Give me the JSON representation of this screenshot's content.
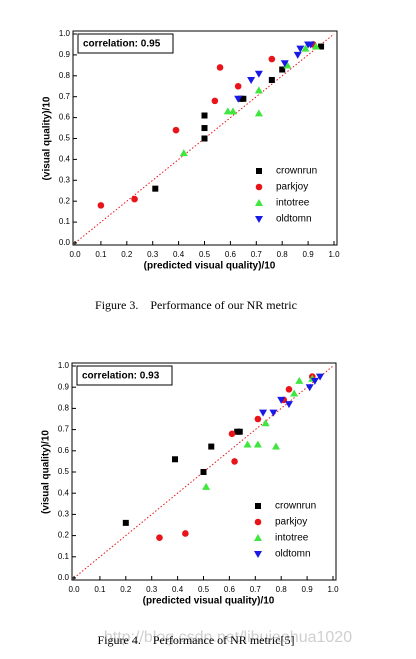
{
  "chart_data": [
    {
      "type": "scatter",
      "annotation": "correlation: 0.95",
      "xlabel": "(predicted visual quality)/10",
      "ylabel": "(visual quality)/10",
      "caption": "Figure 3.    Performance of our NR metric",
      "xlim": [
        0,
        1.0
      ],
      "ylim": [
        0,
        1.0
      ],
      "xticks": [
        {
          "value": 0,
          "label": "0.0"
        },
        {
          "value": 0.1,
          "label": "0.1"
        },
        {
          "value": 0.2,
          "label": "0.2"
        },
        {
          "value": 0.3,
          "label": "0.3"
        },
        {
          "value": 0.4,
          "label": "0.4"
        },
        {
          "value": 0.5,
          "label": "0.5"
        },
        {
          "value": 0.6,
          "label": "0.6"
        },
        {
          "value": 0.7,
          "label": "0.7"
        },
        {
          "value": 0.8,
          "label": "0.8"
        },
        {
          "value": 0.9,
          "label": "0.9"
        },
        {
          "value": 1.0,
          "label": "1.0"
        }
      ],
      "yticks": [
        {
          "value": 0,
          "label": "0.0"
        },
        {
          "value": 0.1,
          "label": "0.1"
        },
        {
          "value": 0.2,
          "label": "0.2"
        },
        {
          "value": 0.3,
          "label": "0.3"
        },
        {
          "value": 0.4,
          "label": "0.4"
        },
        {
          "value": 0.5,
          "label": "0.5"
        },
        {
          "value": 0.6,
          "label": "0.6"
        },
        {
          "value": 0.7,
          "label": "0.7"
        },
        {
          "value": 0.8,
          "label": "0.8"
        },
        {
          "value": 0.9,
          "label": "0.9"
        },
        {
          "value": 1.0,
          "label": "1.0"
        }
      ],
      "legend": "lower right",
      "series": [
        {
          "name": "crownrun",
          "color": "#000000",
          "marker": "square",
          "x": [
            0.31,
            0.5,
            0.5,
            0.5,
            0.64,
            0.65,
            0.76,
            0.8,
            0.95
          ],
          "values": [
            0.26,
            0.55,
            0.61,
            0.5,
            0.69,
            0.69,
            0.78,
            0.83,
            0.94
          ]
        },
        {
          "name": "parkjoy",
          "color": "#e8141a",
          "marker": "circle",
          "x": [
            0.1,
            0.23,
            0.39,
            0.54,
            0.56,
            0.63,
            0.76,
            0.92
          ],
          "values": [
            0.18,
            0.21,
            0.54,
            0.68,
            0.84,
            0.75,
            0.88,
            0.95
          ]
        },
        {
          "name": "intotree",
          "color": "#3ee63e",
          "marker": "triangle",
          "x": [
            0.42,
            0.59,
            0.61,
            0.71,
            0.71,
            0.82,
            0.89,
            0.93
          ],
          "values": [
            0.43,
            0.63,
            0.63,
            0.62,
            0.73,
            0.85,
            0.93,
            0.94
          ]
        },
        {
          "name": "oldtomn",
          "color": "#1a1ae6",
          "marker": "triangle-down",
          "x": [
            0.63,
            0.68,
            0.71,
            0.81,
            0.86,
            0.87,
            0.9,
            0.91
          ],
          "values": [
            0.69,
            0.78,
            0.81,
            0.86,
            0.9,
            0.93,
            0.95,
            0.95
          ]
        }
      ]
    },
    {
      "type": "scatter",
      "annotation": "correlation: 0.93",
      "xlabel": "(predicted visual quality)/10",
      "ylabel": "(visual quality)/10",
      "caption": "Figure 4.    Performance of NR metric[5]",
      "xlim": [
        0,
        1.0
      ],
      "ylim": [
        0,
        1.0
      ],
      "xticks": [
        {
          "value": 0,
          "label": "0.0"
        },
        {
          "value": 0.1,
          "label": "0.1"
        },
        {
          "value": 0.2,
          "label": "0.2"
        },
        {
          "value": 0.3,
          "label": "0.3"
        },
        {
          "value": 0.4,
          "label": "0.4"
        },
        {
          "value": 0.5,
          "label": "0.5"
        },
        {
          "value": 0.6,
          "label": "0.6"
        },
        {
          "value": 0.7,
          "label": "0.7"
        },
        {
          "value": 0.8,
          "label": "0.8"
        },
        {
          "value": 0.9,
          "label": "0.9"
        },
        {
          "value": 1.0,
          "label": "1.0"
        }
      ],
      "yticks": [
        {
          "value": 0,
          "label": "0.0"
        },
        {
          "value": 0.1,
          "label": "0.1"
        },
        {
          "value": 0.2,
          "label": "0.2"
        },
        {
          "value": 0.3,
          "label": "0.3"
        },
        {
          "value": 0.4,
          "label": "0.4"
        },
        {
          "value": 0.5,
          "label": "0.5"
        },
        {
          "value": 0.6,
          "label": "0.6"
        },
        {
          "value": 0.7,
          "label": "0.7"
        },
        {
          "value": 0.8,
          "label": "0.8"
        },
        {
          "value": 0.9,
          "label": "0.9"
        },
        {
          "value": 1.0,
          "label": "1.0"
        }
      ],
      "legend": "lower right",
      "series": [
        {
          "name": "crownrun",
          "color": "#000000",
          "marker": "square",
          "x": [
            0.2,
            0.39,
            0.53,
            0.5,
            0.63,
            0.64
          ],
          "values": [
            0.26,
            0.56,
            0.62,
            0.5,
            0.69,
            0.69
          ]
        },
        {
          "name": "parkjoy",
          "color": "#e8141a",
          "marker": "circle",
          "x": [
            0.33,
            0.43,
            0.62,
            0.61,
            0.71,
            0.81,
            0.83,
            0.92
          ],
          "values": [
            0.19,
            0.21,
            0.55,
            0.68,
            0.75,
            0.84,
            0.89,
            0.95
          ]
        },
        {
          "name": "intotree",
          "color": "#3ee63e",
          "marker": "triangle",
          "x": [
            0.51,
            0.67,
            0.71,
            0.74,
            0.78,
            0.87,
            0.85,
            0.92
          ],
          "values": [
            0.43,
            0.63,
            0.63,
            0.73,
            0.62,
            0.93,
            0.87,
            0.94
          ]
        },
        {
          "name": "oldtomn",
          "color": "#1a1ae6",
          "marker": "triangle-down",
          "x": [
            0.73,
            0.77,
            0.83,
            0.8,
            0.91,
            0.93,
            0.95
          ],
          "values": [
            0.78,
            0.78,
            0.82,
            0.84,
            0.9,
            0.93,
            0.95
          ]
        }
      ]
    }
  ],
  "watermark": "http://blog.csdn.net/lihuiaohua1020"
}
